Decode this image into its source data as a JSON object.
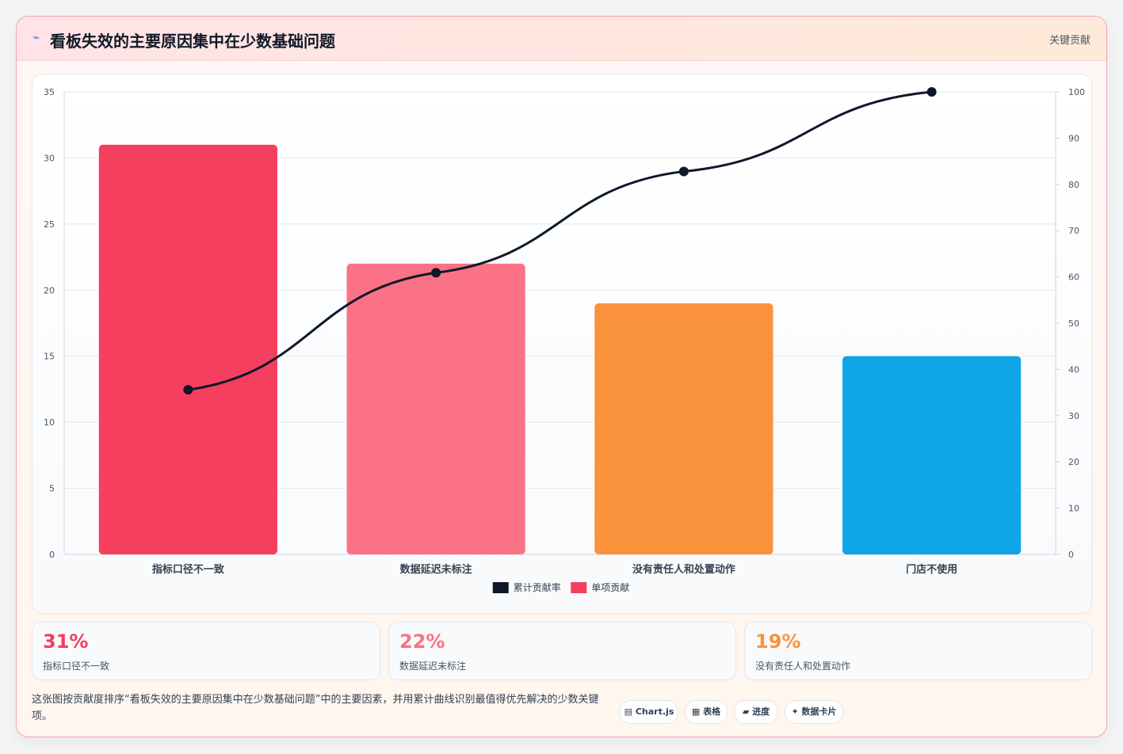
{
  "header": {
    "icon": "chart-icon",
    "title": "看板失效的主要原因集中在少数基础问题",
    "tag": "关键贡献"
  },
  "chart_data": {
    "type": "bar",
    "categories": [
      "指标口径不一致",
      "数据延迟未标注",
      "没有责任人和处置动作",
      "门店不使用"
    ],
    "series": [
      {
        "name": "单项贡献",
        "kind": "bar",
        "values": [
          31,
          22,
          19,
          15
        ],
        "colors": [
          "#f43f5e",
          "#fb7185",
          "#fb923c",
          "#0ea5e9"
        ]
      },
      {
        "name": "累计贡献率",
        "kind": "line",
        "axis": "right",
        "values": [
          35.6,
          60.9,
          82.8,
          100
        ],
        "color": "#0f172a"
      }
    ],
    "y_left": {
      "min": 0,
      "max": 35,
      "ticks": [
        "0",
        "5",
        "10",
        "15",
        "20",
        "25",
        "30",
        "35"
      ]
    },
    "y_right": {
      "min": 0,
      "max": 100,
      "ticks": [
        "0",
        "10",
        "20",
        "30",
        "40",
        "50",
        "60",
        "70",
        "80",
        "90",
        "100"
      ]
    },
    "legend": [
      {
        "label": "累计贡献率",
        "color": "#0f172a"
      },
      {
        "label": "单项贡献",
        "color": "#f43f5e"
      }
    ],
    "legend_position": "bottom",
    "grid": true
  },
  "stats": [
    {
      "value": "31%",
      "label": "指标口径不一致",
      "color": "#f43f5e"
    },
    {
      "value": "22%",
      "label": "数据延迟未标注",
      "color": "#fb7185"
    },
    {
      "value": "19%",
      "label": "没有责任人和处置动作",
      "color": "#fb923c"
    }
  ],
  "description": "这张图按贡献度排序“看板失效的主要原因集中在少数基础问题”中的主要因素，并用累计曲线识别最值得优先解决的少数关键项。",
  "badges": [
    {
      "icon": "chart-icon",
      "glyph": "▤",
      "label": "Chart.js"
    },
    {
      "icon": "table-icon",
      "glyph": "▦",
      "label": "表格"
    },
    {
      "icon": "progress-icon",
      "glyph": "▰",
      "label": "进度"
    },
    {
      "icon": "sparkle-icon",
      "glyph": "✦",
      "label": "数据卡片"
    }
  ]
}
